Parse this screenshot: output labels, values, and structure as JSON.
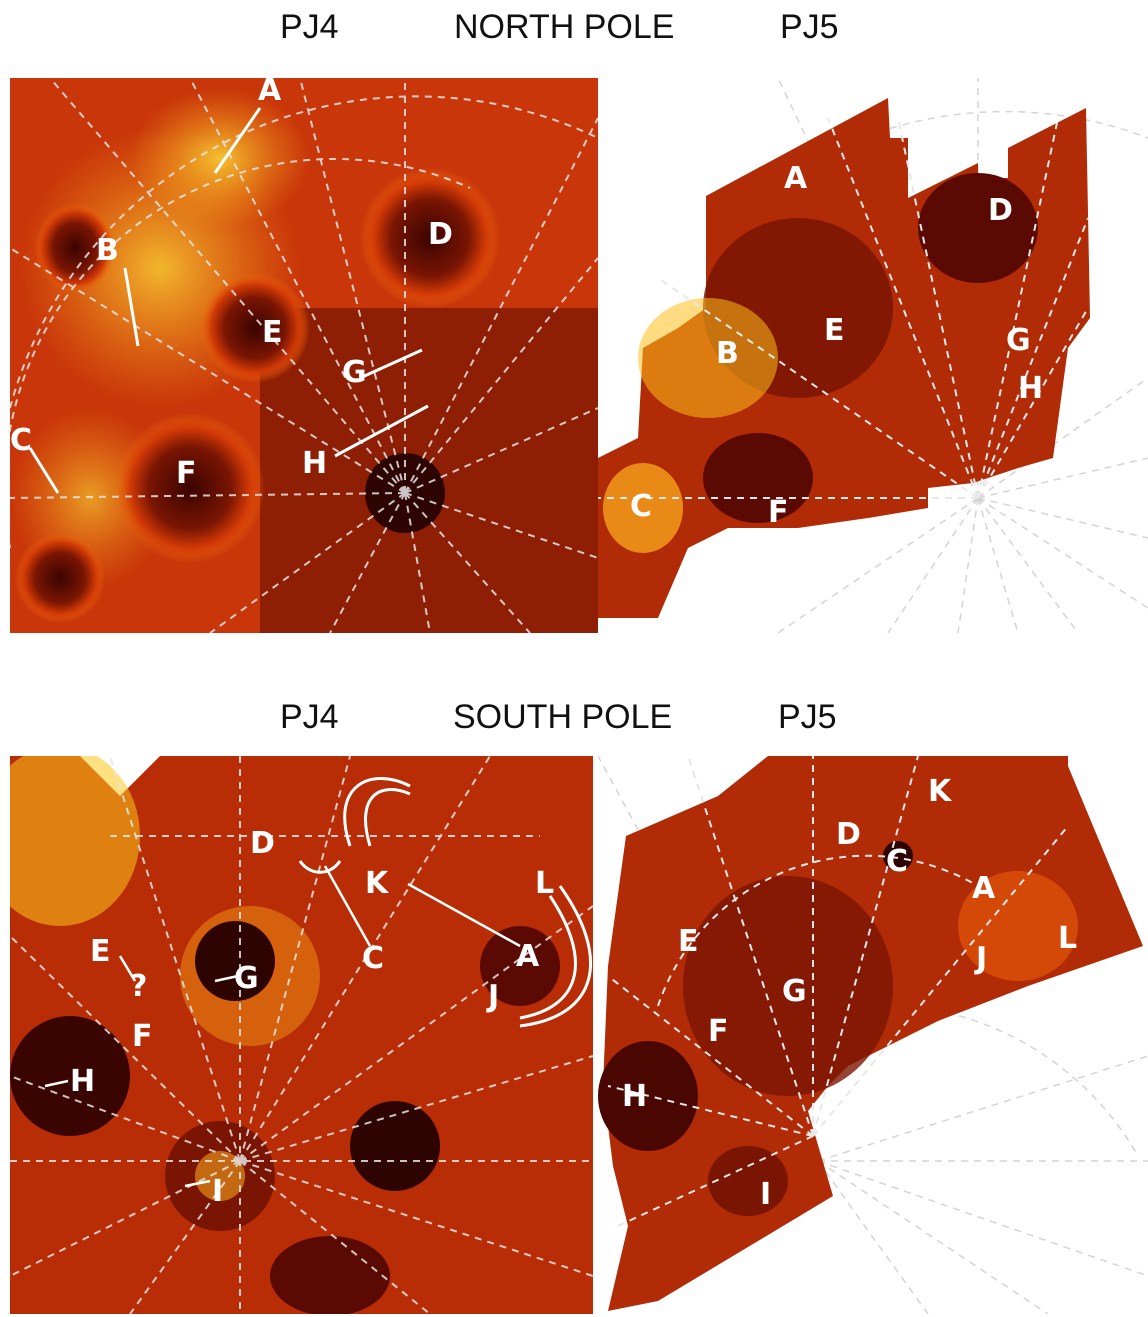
{
  "north": {
    "title": "NORTH POLE",
    "pj4_label": "PJ4",
    "pj5_label": "PJ5",
    "pj4_labels": {
      "A": "A",
      "B": "B",
      "C": "C",
      "D": "D",
      "E": "E",
      "F": "F",
      "G": "G",
      "H": "H"
    },
    "pj5_labels": {
      "A": "A",
      "B": "B",
      "C": "C",
      "D": "D",
      "E": "E",
      "F": "F",
      "G": "G",
      "H": "H"
    }
  },
  "south": {
    "title": "SOUTH POLE",
    "pj4_label": "PJ4",
    "pj5_label": "PJ5",
    "pj4_labels": {
      "A": "A",
      "C": "C",
      "D": "D",
      "E": "E",
      "F": "F",
      "G": "G",
      "H": "H",
      "I": "I",
      "J": "J",
      "K": "K",
      "L": "L",
      "Q": "?"
    },
    "pj5_labels": {
      "A": "A",
      "C": "C",
      "D": "D",
      "E": "E",
      "F": "F",
      "G": "G",
      "H": "H",
      "I": "I",
      "J": "J",
      "K": "K",
      "L": "L"
    }
  },
  "colors": {
    "dark": "#5a0a02",
    "mid": "#c22a04",
    "bright": "#f06a0a",
    "yellow": "#ffd21a",
    "grid": "#e0e0e0"
  }
}
